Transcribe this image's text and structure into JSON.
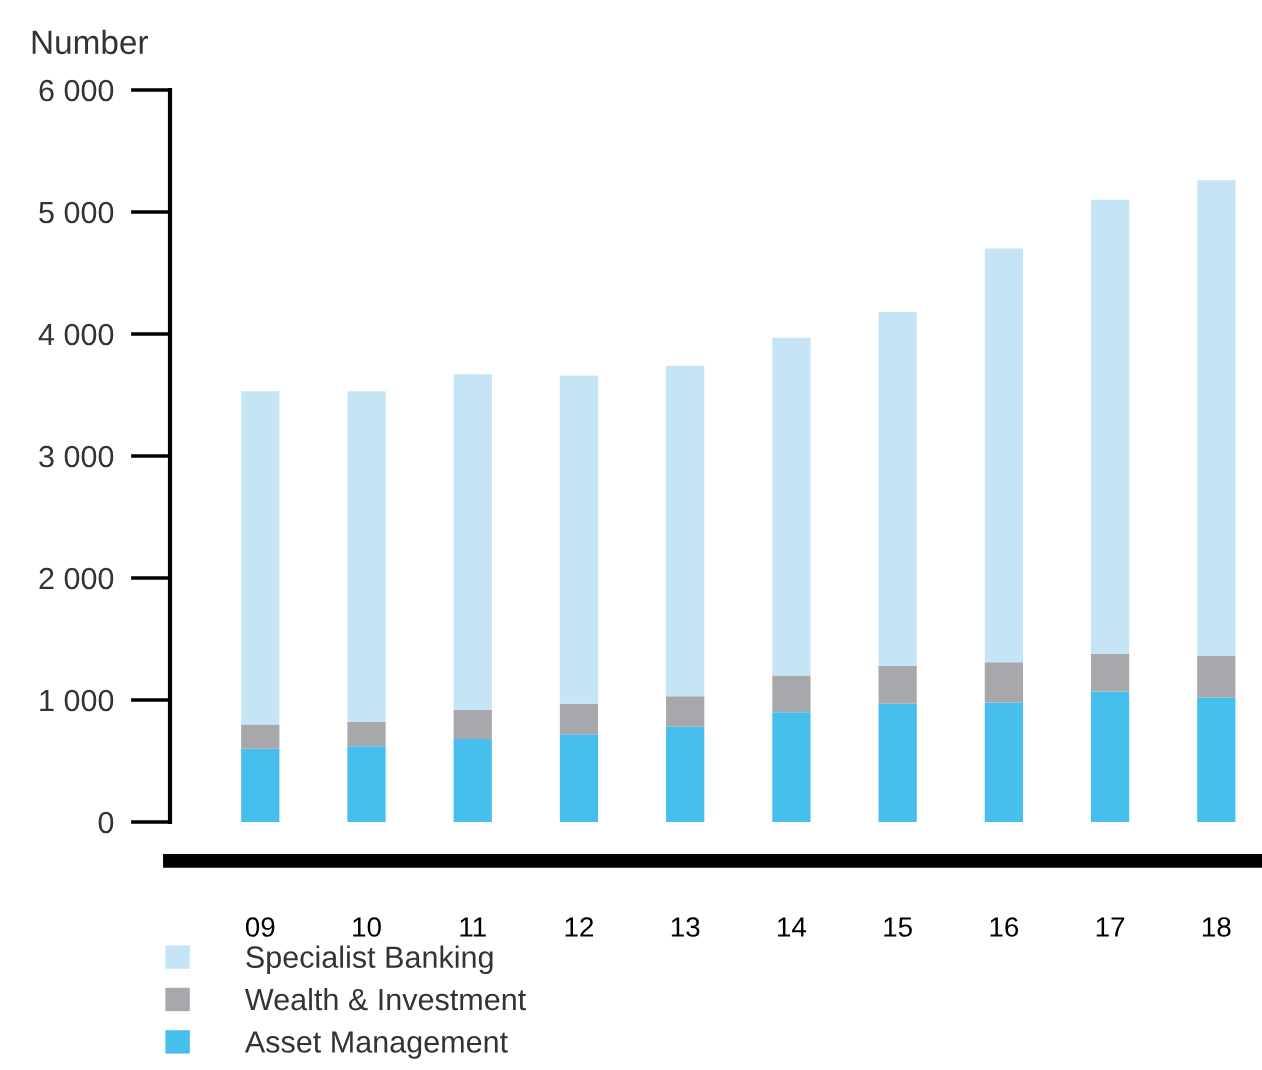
{
  "chart_data": {
    "type": "bar",
    "stacked": true,
    "ylabel": "Number",
    "categories": [
      "09",
      "10",
      "11",
      "12",
      "13",
      "14",
      "15",
      "16",
      "17",
      "18"
    ],
    "series": [
      {
        "name": "Asset Management",
        "color": "#47bfec",
        "values": [
          600,
          620,
          680,
          720,
          780,
          900,
          970,
          980,
          1070,
          1020
        ]
      },
      {
        "name": "Wealth & Investment",
        "color": "#a7a8ab",
        "values": [
          200,
          200,
          240,
          250,
          250,
          300,
          310,
          330,
          310,
          340
        ]
      },
      {
        "name": "Specialist Banking",
        "color": "#c5e5f7",
        "values": [
          2730,
          2710,
          2750,
          2690,
          2710,
          2770,
          2900,
          3390,
          3720,
          3900
        ]
      }
    ],
    "ylim": [
      0,
      6000
    ],
    "yticks": [
      0,
      {
        "value": 1000,
        "label": "1 000"
      },
      {
        "value": 2000,
        "label": "2 000"
      },
      {
        "value": 3000,
        "label": "3 000"
      },
      {
        "value": 4000,
        "label": "4 000"
      },
      {
        "value": 5000,
        "label": "5 000"
      },
      {
        "value": 6000,
        "label": "6 000"
      }
    ],
    "grid": false,
    "legend": "bottom"
  }
}
